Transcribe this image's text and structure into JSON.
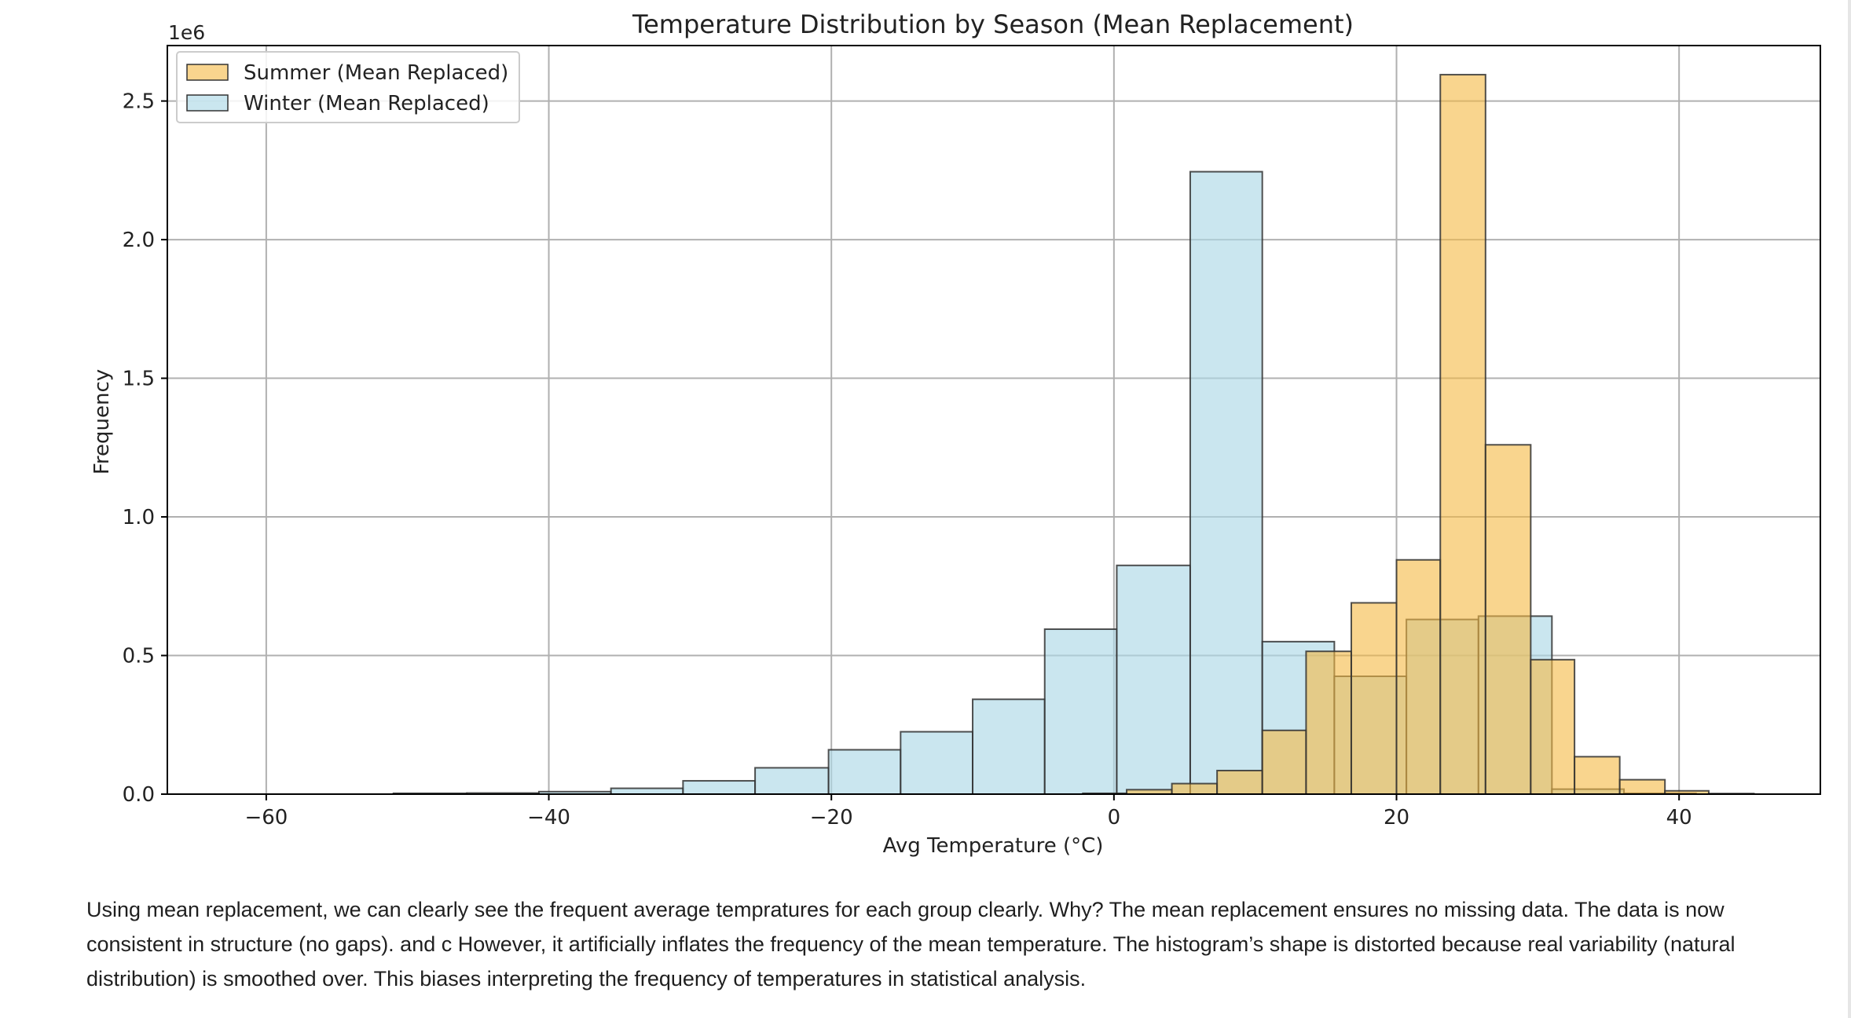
{
  "chart_data": {
    "type": "histogram",
    "title": "Temperature Distribution by Season (Mean Replacement)",
    "xlabel": "Avg Temperature (°C)",
    "ylabel": "Frequency",
    "y_offset_label": "1e6",
    "xlim": [
      -67,
      50
    ],
    "ylim": [
      0,
      2.7
    ],
    "x_ticks": [
      -60,
      -40,
      -20,
      0,
      20,
      40
    ],
    "x_tick_labels": [
      "−60",
      "−40",
      "−20",
      "0",
      "20",
      "40"
    ],
    "y_ticks": [
      0.0,
      0.5,
      1.0,
      1.5,
      2.0,
      2.5
    ],
    "y_tick_labels": [
      "0.0",
      "0.5",
      "1.0",
      "1.5",
      "2.0",
      "2.5"
    ],
    "grid": true,
    "legend_position": "upper-left",
    "series": [
      {
        "name": "Winter (Mean Replaced)",
        "color": "#add8e6",
        "bins": [
          [
            -61.2,
            -56.1,
            0.0
          ],
          [
            -56.1,
            -51.0,
            0.0
          ],
          [
            -51.0,
            -45.8,
            0.003
          ],
          [
            -45.8,
            -40.7,
            0.004
          ],
          [
            -40.7,
            -35.6,
            0.009
          ],
          [
            -35.6,
            -30.5,
            0.021
          ],
          [
            -30.5,
            -25.4,
            0.048
          ],
          [
            -25.4,
            -20.2,
            0.095
          ],
          [
            -20.2,
            -15.1,
            0.16
          ],
          [
            -15.1,
            -10.0,
            0.225
          ],
          [
            -10.0,
            -4.9,
            0.342
          ],
          [
            -4.9,
            0.2,
            0.595
          ],
          [
            0.2,
            5.4,
            0.825
          ],
          [
            5.4,
            10.5,
            2.245
          ],
          [
            10.5,
            15.6,
            0.55
          ],
          [
            15.6,
            20.7,
            0.425
          ],
          [
            20.7,
            25.8,
            0.63
          ],
          [
            25.8,
            31.0,
            0.642
          ],
          [
            31.0,
            36.1,
            0.018
          ],
          [
            36.1,
            41.2,
            0.003
          ]
        ]
      },
      {
        "name": "Summer (Mean Replaced)",
        "color": "#f5b942",
        "bins": [
          [
            -2.2,
            0.9,
            0.003
          ],
          [
            0.9,
            4.1,
            0.016
          ],
          [
            4.1,
            7.3,
            0.038
          ],
          [
            7.3,
            10.5,
            0.085
          ],
          [
            10.5,
            13.6,
            0.23
          ],
          [
            13.6,
            16.8,
            0.515
          ],
          [
            16.8,
            20.0,
            0.69
          ],
          [
            20.0,
            23.1,
            0.845
          ],
          [
            23.1,
            26.3,
            2.595
          ],
          [
            26.3,
            29.5,
            1.26
          ],
          [
            29.5,
            32.6,
            0.485
          ],
          [
            32.6,
            35.8,
            0.135
          ],
          [
            35.8,
            39.0,
            0.052
          ],
          [
            39.0,
            42.1,
            0.012
          ],
          [
            42.1,
            45.3,
            0.002
          ]
        ]
      }
    ]
  },
  "markdown": {
    "paragraph": "Using mean replacement, we can clearly see the frequent average tempratures for each group clearly. Why? The mean replacement ensures no missing data. The data is now consistent in structure (no gaps). and c However, it artificially inflates the frequency of the mean temperature. The histogram’s shape is distorted because real variability (natural distribution) is smoothed over. This biases interpreting the frequency of temperatures in statistical analysis."
  }
}
